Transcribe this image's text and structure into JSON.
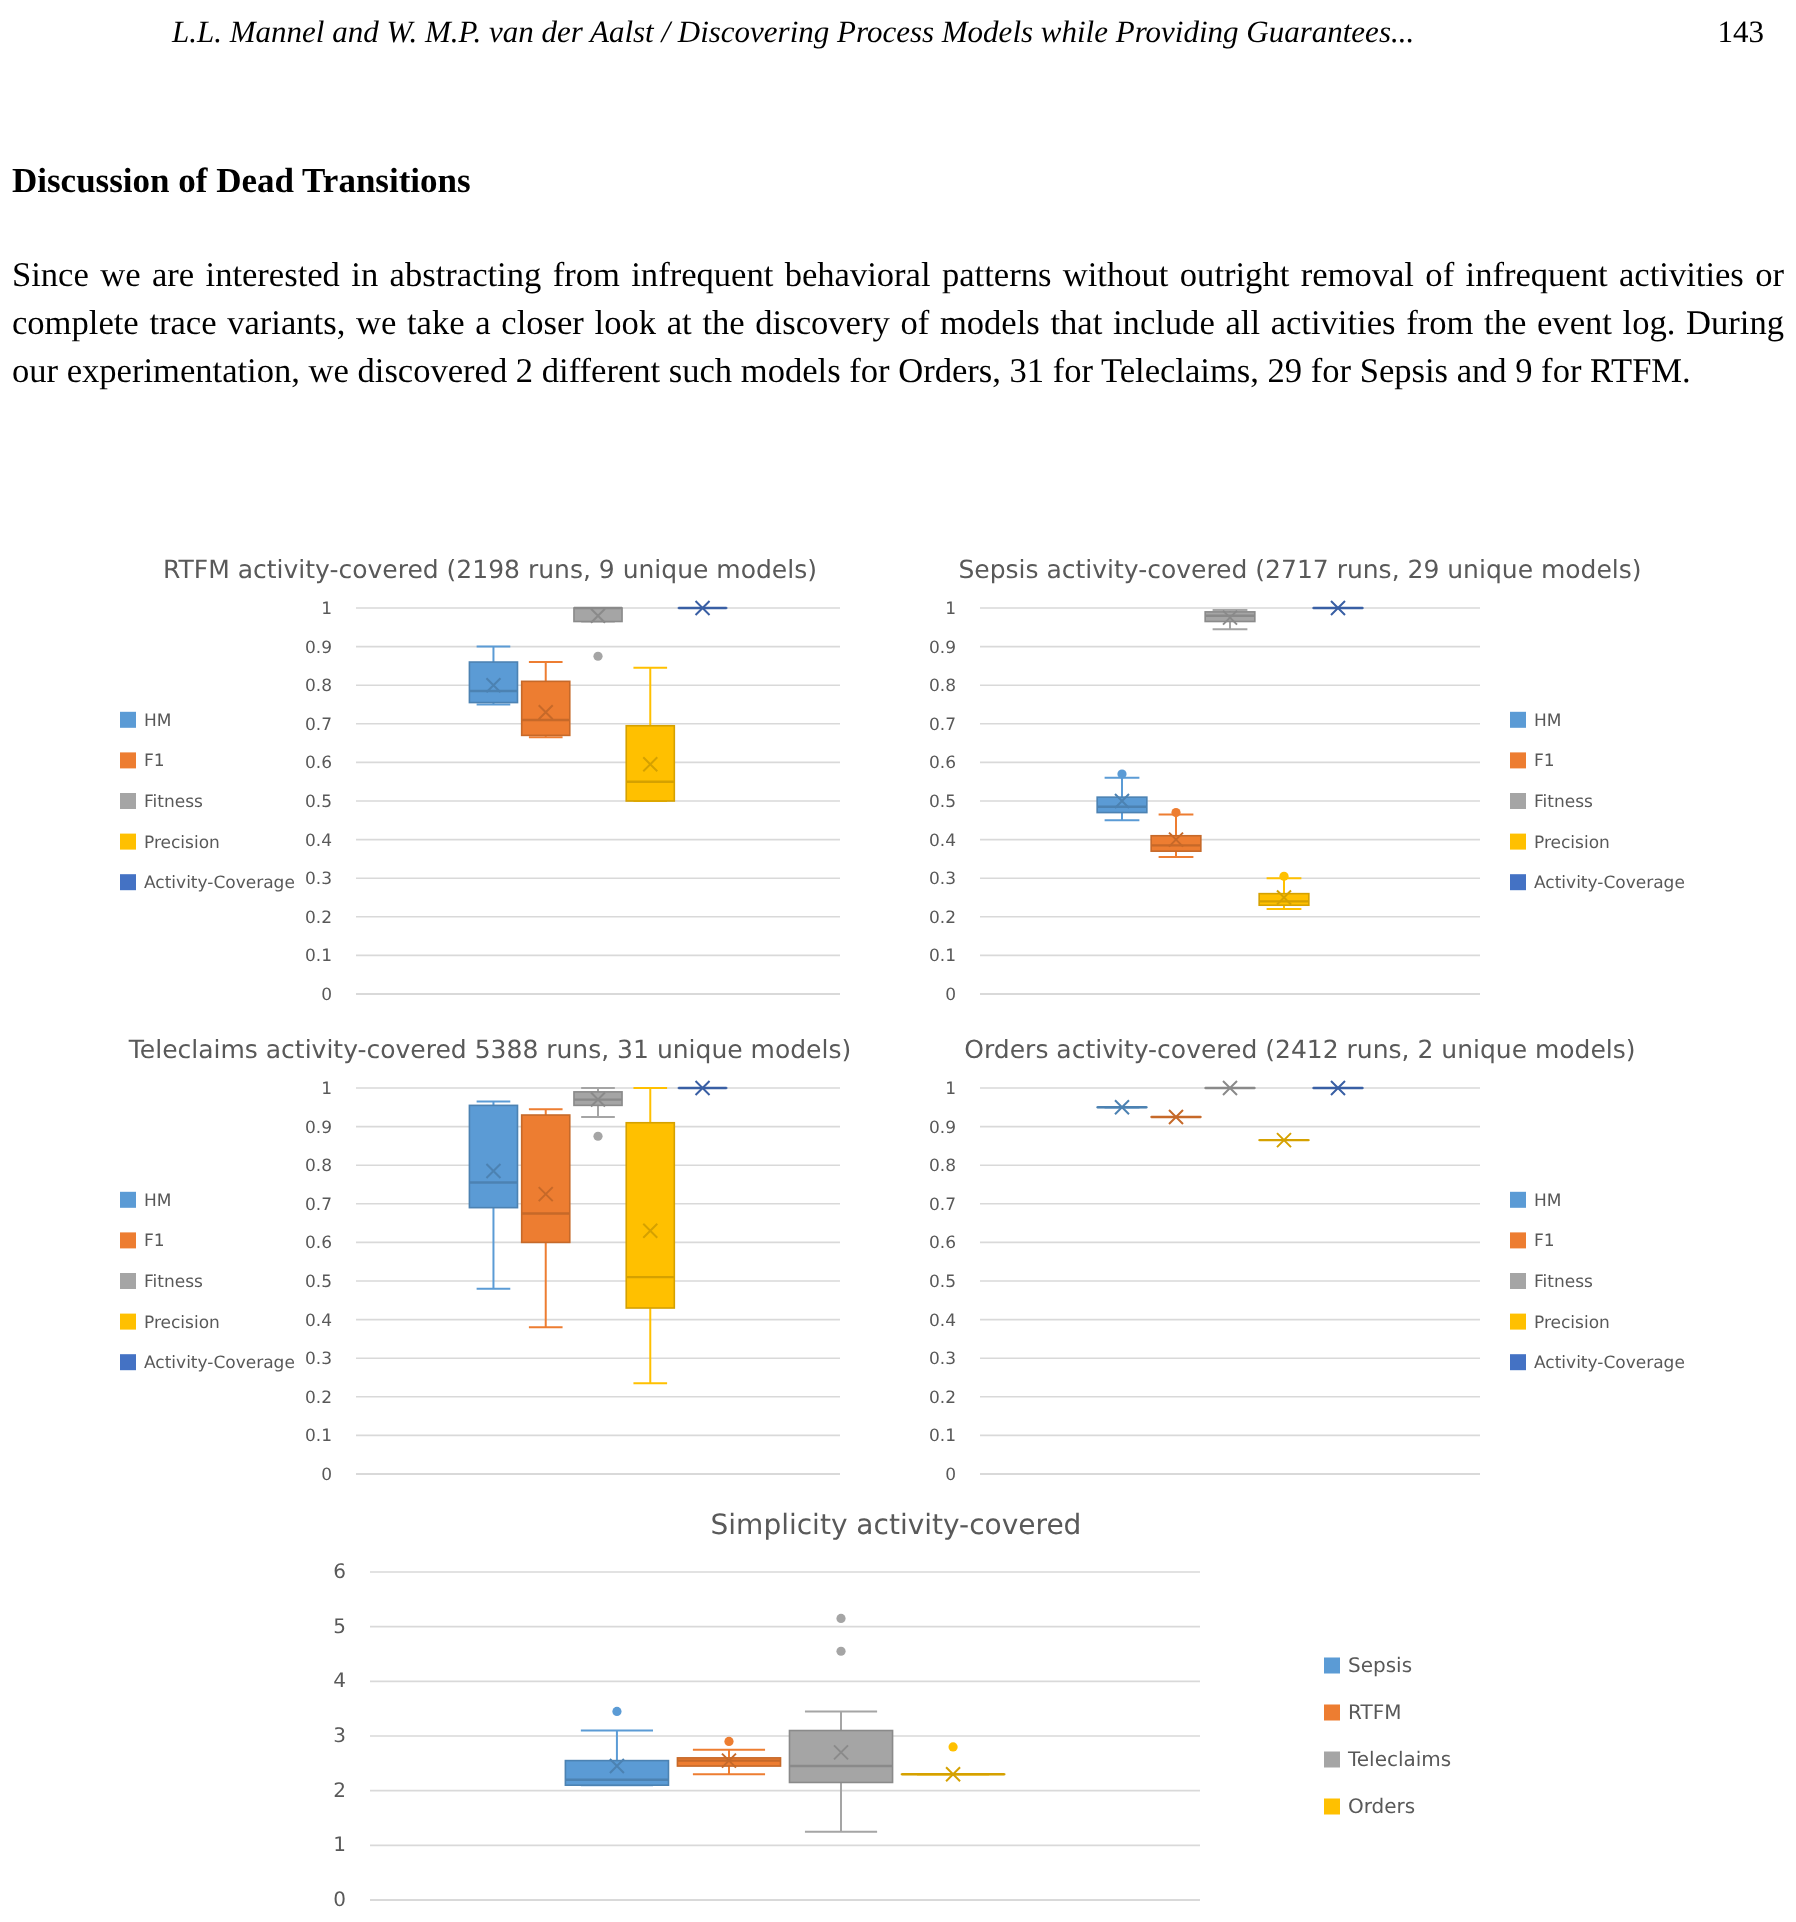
{
  "chart_data": [
    {
      "type": "other",
      "title": "Discussion of Dead Transitions",
      "annotations": [
        "L.L. Mannel and W. M.P. van der Aalst / Discovering Process Models while Providing Guarantees...",
        "143",
        "Since we are interested in abstracting from infrequent behavioral patterns without outright removal of infrequent activities or complete trace variants, we take a closer look at the discovery of models that include all activities from the event log. During our experimentation, we discovered 2 different such models for Orders, 31 for Teleclaims, 29 for Sepsis and 9 for RTFM."
      ]
    },
    {
      "type": "box",
      "title": "RTFM activity-covered (2198 runs, 9 unique models)",
      "categories": [
        null
      ],
      "ylim": [
        0,
        1
      ],
      "yticks": [
        0,
        0.1,
        0.2,
        0.3,
        0.4,
        0.5,
        0.6,
        0.7,
        0.8,
        0.9,
        1
      ],
      "grid": "y",
      "legend": "left",
      "series": [
        {
          "name": "HM",
          "color": "#5b9bd5",
          "boxes": [
            {
              "low": 0.75,
              "q1": 0.755,
              "median": 0.785,
              "q3": 0.86,
              "high": 0.9,
              "mean": 0.8
            }
          ]
        },
        {
          "name": "F1",
          "color": "#ed7d31",
          "boxes": [
            {
              "low": 0.665,
              "q1": 0.67,
              "median": 0.71,
              "q3": 0.81,
              "high": 0.86,
              "mean": 0.73
            }
          ]
        },
        {
          "name": "Fitness",
          "color": "#a5a5a5",
          "boxes": [
            {
              "low": 0.965,
              "q1": 0.965,
              "median": 1,
              "q3": 1,
              "high": 1,
              "mean": 0.98,
              "outliers": [
                0.875
              ]
            }
          ]
        },
        {
          "name": "Precision",
          "color": "#ffc000",
          "boxes": [
            {
              "low": 0.5,
              "q1": 0.5,
              "median": 0.55,
              "q3": 0.695,
              "high": 0.845,
              "mean": 0.595
            }
          ]
        },
        {
          "name": "Activity-Coverage",
          "color": "#4472c4",
          "boxes": [
            {
              "low": 1,
              "q1": 1,
              "median": 1,
              "q3": 1,
              "high": 1,
              "mean": 1
            }
          ]
        }
      ]
    },
    {
      "type": "box",
      "title": "Sepsis activity-covered (2717 runs, 29 unique models)",
      "categories": [
        null
      ],
      "ylim": [
        0,
        1
      ],
      "yticks": [
        0,
        0.1,
        0.2,
        0.3,
        0.4,
        0.5,
        0.6,
        0.7,
        0.8,
        0.9,
        1
      ],
      "grid": "y",
      "legend": "right",
      "series": [
        {
          "name": "HM",
          "color": "#5b9bd5",
          "boxes": [
            {
              "low": 0.45,
              "q1": 0.47,
              "median": 0.485,
              "q3": 0.51,
              "high": 0.56,
              "mean": 0.5,
              "outliers": [
                0.57
              ]
            }
          ]
        },
        {
          "name": "F1",
          "color": "#ed7d31",
          "boxes": [
            {
              "low": 0.355,
              "q1": 0.37,
              "median": 0.385,
              "q3": 0.41,
              "high": 0.465,
              "mean": 0.4,
              "outliers": [
                0.47
              ]
            }
          ]
        },
        {
          "name": "Fitness",
          "color": "#a5a5a5",
          "boxes": [
            {
              "low": 0.945,
              "q1": 0.965,
              "median": 0.98,
              "q3": 0.99,
              "high": 0.995,
              "mean": 0.975
            }
          ]
        },
        {
          "name": "Precision",
          "color": "#ffc000",
          "boxes": [
            {
              "low": 0.22,
              "q1": 0.23,
              "median": 0.24,
              "q3": 0.26,
              "high": 0.3,
              "mean": 0.25,
              "outliers": [
                0.305
              ]
            }
          ]
        },
        {
          "name": "Activity-Coverage",
          "color": "#4472c4",
          "boxes": [
            {
              "low": 1,
              "q1": 1,
              "median": 1,
              "q3": 1,
              "high": 1,
              "mean": 1
            }
          ]
        }
      ]
    },
    {
      "type": "box",
      "title": "Teleclaims activity-covered 5388 runs, 31 unique models)",
      "categories": [
        null
      ],
      "ylim": [
        0,
        1
      ],
      "yticks": [
        0,
        0.1,
        0.2,
        0.3,
        0.4,
        0.5,
        0.6,
        0.7,
        0.8,
        0.9,
        1
      ],
      "grid": "y",
      "legend": "left",
      "series": [
        {
          "name": "HM",
          "color": "#5b9bd5",
          "boxes": [
            {
              "low": 0.48,
              "q1": 0.69,
              "median": 0.755,
              "q3": 0.955,
              "high": 0.965,
              "mean": 0.785
            }
          ]
        },
        {
          "name": "F1",
          "color": "#ed7d31",
          "boxes": [
            {
              "low": 0.38,
              "q1": 0.6,
              "median": 0.675,
              "q3": 0.93,
              "high": 0.945,
              "mean": 0.725
            }
          ]
        },
        {
          "name": "Fitness",
          "color": "#a5a5a5",
          "boxes": [
            {
              "low": 0.925,
              "q1": 0.955,
              "median": 0.97,
              "q3": 0.99,
              "high": 1,
              "mean": 0.97,
              "outliers": [
                0.875
              ]
            }
          ]
        },
        {
          "name": "Precision",
          "color": "#ffc000",
          "boxes": [
            {
              "low": 0.235,
              "q1": 0.43,
              "median": 0.51,
              "q3": 0.91,
              "high": 1,
              "mean": 0.63
            }
          ]
        },
        {
          "name": "Activity-Coverage",
          "color": "#4472c4",
          "boxes": [
            {
              "low": 1,
              "q1": 1,
              "median": 1,
              "q3": 1,
              "high": 1,
              "mean": 1
            }
          ]
        }
      ]
    },
    {
      "type": "box",
      "title": "Orders activity-covered (2412 runs, 2 unique models)",
      "categories": [
        null
      ],
      "ylim": [
        0,
        1
      ],
      "yticks": [
        0,
        0.1,
        0.2,
        0.3,
        0.4,
        0.5,
        0.6,
        0.7,
        0.8,
        0.9,
        1
      ],
      "grid": "y",
      "legend": "right",
      "series": [
        {
          "name": "HM",
          "color": "#5b9bd5",
          "boxes": [
            {
              "low": 0.95,
              "q1": 0.95,
              "median": 0.95,
              "q3": 0.95,
              "high": 0.95,
              "mean": 0.95
            }
          ]
        },
        {
          "name": "F1",
          "color": "#ed7d31",
          "boxes": [
            {
              "low": 0.925,
              "q1": 0.925,
              "median": 0.925,
              "q3": 0.925,
              "high": 0.925,
              "mean": 0.925
            }
          ]
        },
        {
          "name": "Fitness",
          "color": "#a5a5a5",
          "boxes": [
            {
              "low": 1,
              "q1": 1,
              "median": 1,
              "q3": 1,
              "high": 1,
              "mean": 1
            }
          ]
        },
        {
          "name": "Precision",
          "color": "#ffc000",
          "boxes": [
            {
              "low": 0.865,
              "q1": 0.865,
              "median": 0.865,
              "q3": 0.865,
              "high": 0.865,
              "mean": 0.865
            }
          ]
        },
        {
          "name": "Activity-Coverage",
          "color": "#4472c4",
          "boxes": [
            {
              "low": 1,
              "q1": 1,
              "median": 1,
              "q3": 1,
              "high": 1,
              "mean": 1
            }
          ]
        }
      ]
    },
    {
      "type": "box",
      "title": "Simplicity activity-covered",
      "categories": [
        null
      ],
      "ylim": [
        0,
        6
      ],
      "yticks": [
        0,
        1,
        2,
        3,
        4,
        5,
        6
      ],
      "grid": "y",
      "legend": "right",
      "series": [
        {
          "name": "Sepsis",
          "color": "#5b9bd5",
          "boxes": [
            {
              "low": 2.1,
              "q1": 2.1,
              "median": 2.2,
              "q3": 2.55,
              "high": 3.1,
              "mean": 2.45,
              "outliers": [
                3.45
              ]
            }
          ]
        },
        {
          "name": "RTFM",
          "color": "#ed7d31",
          "boxes": [
            {
              "low": 2.3,
              "q1": 2.45,
              "median": 2.55,
              "q3": 2.6,
              "high": 2.75,
              "mean": 2.55,
              "outliers": [
                2.9
              ]
            }
          ]
        },
        {
          "name": "Teleclaims",
          "color": "#a5a5a5",
          "boxes": [
            {
              "low": 1.25,
              "q1": 2.15,
              "median": 2.45,
              "q3": 3.1,
              "high": 3.45,
              "mean": 2.7,
              "outliers": [
                4.55,
                5.15
              ]
            }
          ]
        },
        {
          "name": "Orders",
          "color": "#ffc000",
          "boxes": [
            {
              "low": 2.3,
              "q1": 2.3,
              "median": 2.3,
              "q3": 2.3,
              "high": 2.3,
              "mean": 2.3,
              "outliers": [
                2.8
              ]
            }
          ]
        }
      ]
    }
  ]
}
